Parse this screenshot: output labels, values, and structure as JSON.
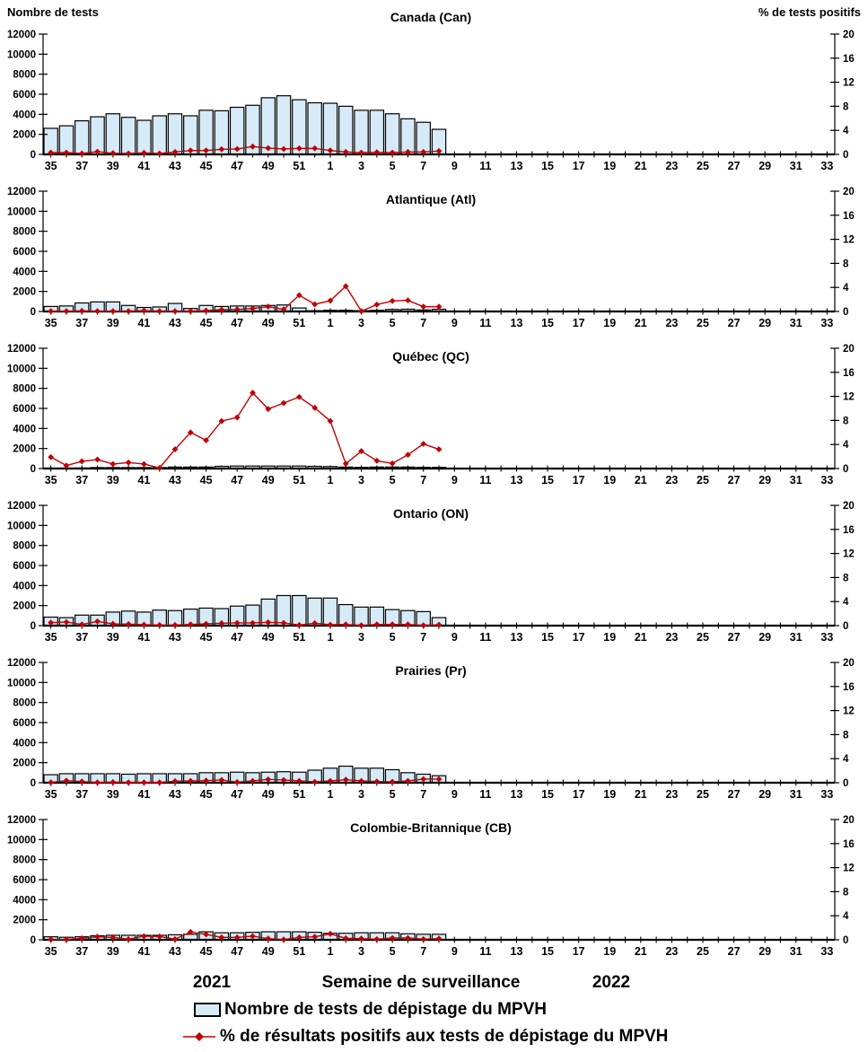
{
  "header": {
    "left_axis_title": "Nombre de tests",
    "right_axis_title": "% de tests positifs"
  },
  "footer": {
    "year_left": "2021",
    "x_axis_title": "Semaine de surveillance",
    "year_right": "2022"
  },
  "legend": {
    "bars_label": "Nombre de tests de dépistage du MPVH",
    "line_label": "% de résultats positifs aux tests de dépistage du MPVH"
  },
  "colors": {
    "bar_fill": "#D6EBF7",
    "bar_stroke": "#000000",
    "line_color": "#C00000",
    "text": "#000000"
  },
  "chart_data": {
    "type": "bar+line",
    "description": "Weekly HMPV laboratory tests (bars, left axis) and percent positive (red diamond line, right axis) by region, surveillance weeks 2021-35 to 2022-33",
    "x_weeks": [
      35,
      36,
      37,
      38,
      39,
      40,
      41,
      42,
      43,
      44,
      45,
      46,
      47,
      48,
      49,
      50,
      51,
      52,
      1,
      2,
      3,
      4,
      5,
      6,
      7,
      8,
      9,
      10,
      11,
      12,
      13,
      14,
      15,
      16,
      17,
      18,
      19,
      20,
      21,
      22,
      23,
      24,
      25,
      26,
      27,
      28,
      29,
      30,
      31,
      32,
      33
    ],
    "x_tick_labels_shown": [
      "35",
      "37",
      "39",
      "41",
      "43",
      "45",
      "47",
      "49",
      "51",
      "1",
      "3",
      "5",
      "7",
      "9",
      "11",
      "13",
      "15",
      "17",
      "19",
      "21",
      "23",
      "25",
      "27",
      "29",
      "31",
      "33"
    ],
    "left_axis": {
      "min": 0,
      "max": 12000,
      "step": 2000,
      "tick_labels": [
        "0",
        "2000",
        "4000",
        "6000",
        "8000",
        "10000",
        "12000"
      ]
    },
    "right_axis": {
      "min": 0,
      "max": 20,
      "step": 4,
      "tick_labels": [
        "0",
        "4",
        "8",
        "12",
        "16",
        "20"
      ]
    },
    "marker": "diamond",
    "panels": [
      {
        "title": "Canada (Can)",
        "tests": [
          2600,
          2850,
          3350,
          3750,
          4050,
          3700,
          3400,
          3850,
          4050,
          3850,
          4400,
          4350,
          4700,
          4900,
          5650,
          5850,
          5450,
          5150,
          5100,
          4800,
          4400,
          4400,
          4050,
          3550,
          3200,
          2500
        ],
        "pct_positive": [
          0.3,
          0.3,
          0.15,
          0.45,
          0.2,
          0.15,
          0.25,
          0.15,
          0.4,
          0.65,
          0.65,
          0.85,
          0.9,
          1.3,
          1.05,
          0.9,
          1.0,
          1.0,
          0.65,
          0.4,
          0.3,
          0.35,
          0.3,
          0.4,
          0.4,
          0.55
        ]
      },
      {
        "title": "Atlantique (Atl)",
        "tests": [
          500,
          550,
          850,
          950,
          950,
          600,
          400,
          450,
          800,
          300,
          600,
          500,
          550,
          550,
          600,
          650,
          350,
          80,
          120,
          120,
          80,
          120,
          200,
          220,
          150,
          220
        ],
        "pct_positive": [
          0.05,
          0.05,
          0.1,
          0.05,
          0.05,
          0.05,
          0.15,
          0.05,
          0.05,
          0.05,
          0.15,
          0.3,
          0.35,
          0.5,
          0.8,
          0.35,
          2.7,
          1.2,
          1.8,
          4.2,
          0.05,
          1.15,
          1.75,
          1.85,
          0.8,
          0.8
        ]
      },
      {
        "title": "Québec (QC)",
        "tests": [
          50,
          50,
          60,
          100,
          100,
          100,
          100,
          100,
          150,
          150,
          150,
          220,
          250,
          250,
          250,
          250,
          250,
          220,
          200,
          150,
          120,
          150,
          150,
          150,
          120,
          120
        ],
        "pct_positive": [
          1.9,
          0.5,
          1.2,
          1.5,
          0.75,
          1.0,
          0.75,
          0.1,
          3.2,
          6.0,
          4.7,
          7.9,
          8.5,
          12.6,
          9.9,
          10.9,
          11.9,
          10.1,
          7.9,
          0.8,
          2.9,
          1.3,
          0.85,
          2.3,
          4.1,
          3.2
        ]
      },
      {
        "title": "Ontario (ON)",
        "tests": [
          850,
          800,
          1050,
          1050,
          1350,
          1450,
          1350,
          1550,
          1500,
          1650,
          1750,
          1700,
          1950,
          2050,
          2650,
          3000,
          3000,
          2750,
          2750,
          2100,
          1850,
          1850,
          1600,
          1500,
          1400,
          800
        ],
        "pct_positive": [
          0.5,
          0.6,
          0.2,
          0.7,
          0.3,
          0.25,
          0.15,
          0.1,
          0.1,
          0.2,
          0.3,
          0.4,
          0.45,
          0.45,
          0.55,
          0.45,
          0.1,
          0.4,
          0.15,
          0.2,
          0.05,
          0.2,
          0.2,
          0.2,
          0.05,
          0.15
        ]
      },
      {
        "title": "Prairies (Pr)",
        "tests": [
          800,
          900,
          900,
          900,
          900,
          850,
          900,
          900,
          900,
          900,
          1000,
          1000,
          1050,
          1000,
          1050,
          1100,
          1050,
          1250,
          1450,
          1650,
          1450,
          1450,
          1300,
          1000,
          850,
          700
        ],
        "pct_positive": [
          0.05,
          0.35,
          0.2,
          0.05,
          0.1,
          0.05,
          0.05,
          0.05,
          0.25,
          0.3,
          0.35,
          0.45,
          0.1,
          0.3,
          0.55,
          0.45,
          0.3,
          0.15,
          0.3,
          0.5,
          0.3,
          0.2,
          0.15,
          0.3,
          0.6,
          0.6
        ]
      },
      {
        "title": "Colombie-Britannique (CB)",
        "tests": [
          300,
          250,
          300,
          400,
          450,
          450,
          450,
          450,
          500,
          550,
          800,
          700,
          700,
          750,
          800,
          800,
          800,
          750,
          650,
          650,
          700,
          700,
          700,
          600,
          550,
          550
        ],
        "pct_positive": [
          0.05,
          0.05,
          0.25,
          0.5,
          0.4,
          0.1,
          0.6,
          0.55,
          0.1,
          1.3,
          0.9,
          0.4,
          0.4,
          0.6,
          0.2,
          0.05,
          0.4,
          0.5,
          1.0,
          0.25,
          0.2,
          0.1,
          0.3,
          0.3,
          0.1,
          0.2
        ]
      }
    ]
  }
}
